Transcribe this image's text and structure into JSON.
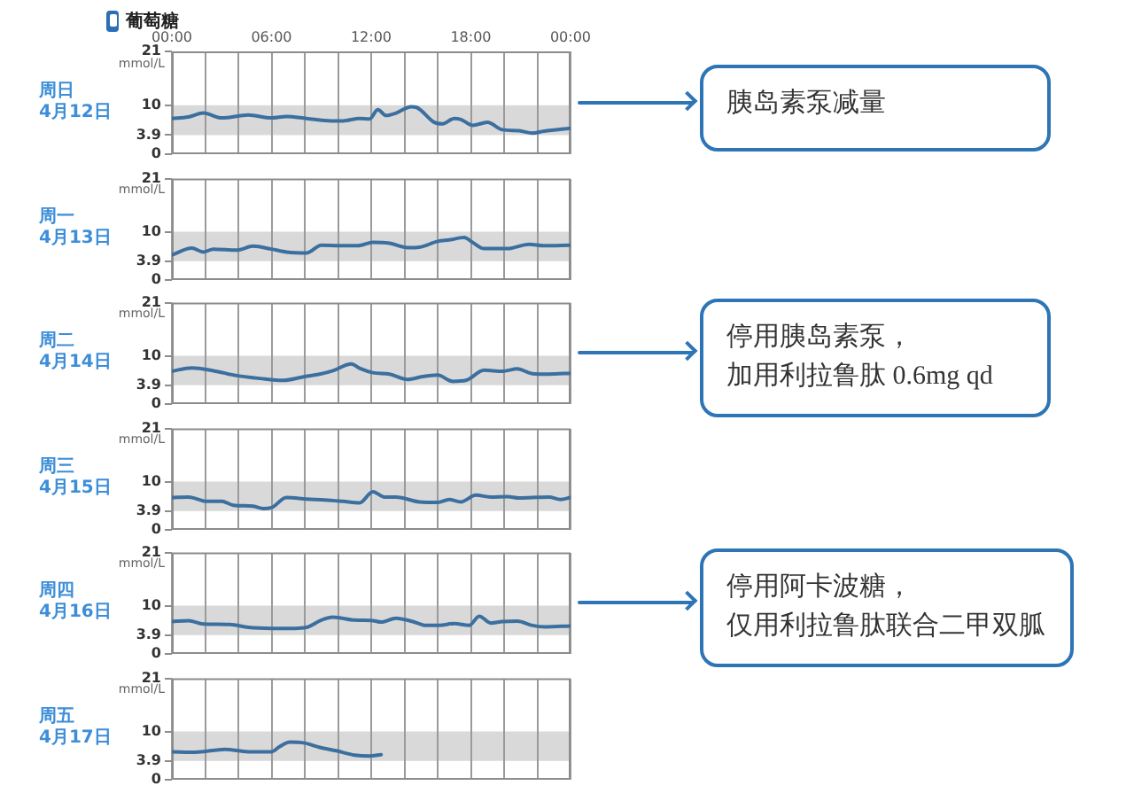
{
  "chart_data": [
    {
      "type": "other",
      "title": "葡萄糖"
    },
    {
      "type": "line",
      "title": "周日",
      "subtitle": "4月12日",
      "ylabel": "mmol/L",
      "color": "#3b6f9f",
      "x": [
        0,
        1,
        1.9,
        3,
        4.6,
        6,
        6.9,
        8.1,
        9.6,
        10.3,
        11.3,
        11.9,
        12.4,
        12.9,
        13.5,
        14.4,
        14.7,
        15.8,
        16.3,
        17,
        17.4,
        18.1,
        19,
        19.9,
        20.9,
        21.7,
        22.4,
        24
      ],
      "values": [
        7.3,
        7.6,
        8.4,
        7.4,
        8.0,
        7.4,
        7.7,
        7.3,
        6.8,
        6.8,
        7.3,
        7.2,
        9.1,
        7.9,
        8.4,
        9.7,
        9.6,
        6.5,
        6.2,
        7.3,
        7.1,
        5.9,
        6.5,
        5.0,
        4.8,
        4.3,
        4.7,
        5.3
      ],
      "xlim": [
        0,
        24
      ],
      "xticks": [
        {
          "value": 0,
          "label": "00:00"
        },
        {
          "value": 2,
          "label": null
        },
        {
          "value": 4,
          "label": null
        },
        {
          "value": 6,
          "label": "06:00"
        },
        {
          "value": 8,
          "label": null
        },
        {
          "value": 10,
          "label": null
        },
        {
          "value": 12,
          "label": "12:00"
        },
        {
          "value": 14,
          "label": null
        },
        {
          "value": 16,
          "label": null
        },
        {
          "value": 18,
          "label": "18:00"
        },
        {
          "value": 20,
          "label": null
        },
        {
          "value": 22,
          "label": null
        },
        {
          "value": 24,
          "label": "00:00"
        }
      ],
      "ylim": [
        0,
        21
      ],
      "yticks": [
        0,
        3.9,
        10,
        21
      ],
      "grid": "x",
      "bands": [
        {
          "axis": "y",
          "from": 3.9,
          "to": 10,
          "color": "#d9d9d9"
        }
      ],
      "annotations": [
        "胰岛素泵减量"
      ]
    },
    {
      "type": "line",
      "title": "周一",
      "subtitle": "4月13日",
      "ylabel": "mmol/L",
      "color": "#3b6f9f",
      "x": [
        0,
        1.2,
        1.9,
        2.5,
        3.9,
        4.9,
        6,
        6.9,
        8.1,
        9,
        10.1,
        11.2,
        12.1,
        13.1,
        14.2,
        14.9,
        16,
        16.7,
        17.6,
        18.1,
        18.8,
        20.2,
        21.5,
        22.4,
        24
      ],
      "values": [
        5.2,
        6.6,
        5.8,
        6.4,
        6.2,
        7.0,
        6.4,
        5.8,
        5.6,
        7.2,
        7.1,
        7.1,
        7.8,
        7.6,
        6.7,
        6.8,
        8.0,
        8.3,
        8.8,
        7.8,
        6.5,
        6.5,
        7.4,
        7.1,
        7.2
      ],
      "xlim": [
        0,
        24
      ],
      "xticks": [
        {
          "value": 0,
          "label": null
        },
        {
          "value": 2,
          "label": null
        },
        {
          "value": 4,
          "label": null
        },
        {
          "value": 6,
          "label": null
        },
        {
          "value": 8,
          "label": null
        },
        {
          "value": 10,
          "label": null
        },
        {
          "value": 12,
          "label": null
        },
        {
          "value": 14,
          "label": null
        },
        {
          "value": 16,
          "label": null
        },
        {
          "value": 18,
          "label": null
        },
        {
          "value": 20,
          "label": null
        },
        {
          "value": 22,
          "label": null
        },
        {
          "value": 24,
          "label": null
        }
      ],
      "ylim": [
        0,
        21
      ],
      "yticks": [
        0,
        3.9,
        10,
        21
      ],
      "grid": "x",
      "tick_labels": "y",
      "bands": [
        {
          "axis": "y",
          "from": 3.9,
          "to": 10,
          "color": "#d9d9d9"
        }
      ]
    },
    {
      "type": "line",
      "title": "周二",
      "subtitle": "4月14日",
      "ylabel": "mmol/L",
      "color": "#3b6f9f",
      "x": [
        0,
        1.2,
        2.5,
        3.9,
        5.3,
        6.7,
        8,
        8.9,
        9.7,
        10.8,
        11.3,
        12.1,
        13.1,
        14.2,
        15.1,
        16,
        16.9,
        17.7,
        18.8,
        19.9,
        20.8,
        21.7,
        22.7,
        24
      ],
      "values": [
        6.8,
        7.5,
        6.9,
        5.9,
        5.3,
        4.9,
        5.7,
        6.2,
        6.9,
        8.3,
        7.4,
        6.5,
        6.2,
        5.1,
        5.7,
        6.0,
        4.7,
        4.9,
        7.0,
        6.8,
        7.3,
        6.3,
        6.2,
        6.4
      ],
      "xlim": [
        0,
        24
      ],
      "xticks": [
        {
          "value": 0,
          "label": null
        },
        {
          "value": 2,
          "label": null
        },
        {
          "value": 4,
          "label": null
        },
        {
          "value": 6,
          "label": null
        },
        {
          "value": 8,
          "label": null
        },
        {
          "value": 10,
          "label": null
        },
        {
          "value": 12,
          "label": null
        },
        {
          "value": 14,
          "label": null
        },
        {
          "value": 16,
          "label": null
        },
        {
          "value": 18,
          "label": null
        },
        {
          "value": 20,
          "label": null
        },
        {
          "value": 22,
          "label": null
        },
        {
          "value": 24,
          "label": null
        }
      ],
      "ylim": [
        0,
        21
      ],
      "yticks": [
        0,
        3.9,
        10,
        21
      ],
      "grid": "x",
      "tick_labels": "y",
      "bands": [
        {
          "axis": "y",
          "from": 3.9,
          "to": 10,
          "color": "#d9d9d9"
        }
      ],
      "annotations": [
        "停用胰岛素泵，",
        "加用利拉鲁肽 0.6mg qd"
      ]
    },
    {
      "type": "line",
      "title": "周三",
      "subtitle": "4月15日",
      "ylabel": "mmol/L",
      "color": "#3b6f9f",
      "x": [
        0,
        1,
        2.1,
        3,
        3.7,
        4.9,
        5.5,
        6,
        6.9,
        8.1,
        9.2,
        10.3,
        11.3,
        12.1,
        12.8,
        13.5,
        14.9,
        16,
        16.7,
        17.4,
        18.3,
        19.2,
        20.2,
        20.9,
        21.7,
        22.7,
        23.4,
        24
      ],
      "values": [
        6.7,
        6.8,
        5.9,
        5.9,
        5.1,
        4.9,
        4.4,
        4.6,
        6.7,
        6.4,
        6.2,
        5.9,
        5.6,
        7.9,
        6.8,
        6.8,
        5.8,
        5.7,
        6.3,
        5.8,
        7.2,
        6.8,
        6.9,
        6.6,
        6.7,
        6.8,
        6.3,
        6.7
      ],
      "xlim": [
        0,
        24
      ],
      "xticks": [
        {
          "value": 0,
          "label": null
        },
        {
          "value": 2,
          "label": null
        },
        {
          "value": 4,
          "label": null
        },
        {
          "value": 6,
          "label": null
        },
        {
          "value": 8,
          "label": null
        },
        {
          "value": 10,
          "label": null
        },
        {
          "value": 12,
          "label": null
        },
        {
          "value": 14,
          "label": null
        },
        {
          "value": 16,
          "label": null
        },
        {
          "value": 18,
          "label": null
        },
        {
          "value": 20,
          "label": null
        },
        {
          "value": 22,
          "label": null
        },
        {
          "value": 24,
          "label": null
        }
      ],
      "ylim": [
        0,
        21
      ],
      "yticks": [
        0,
        3.9,
        10,
        21
      ],
      "grid": "x",
      "tick_labels": "y",
      "bands": [
        {
          "axis": "y",
          "from": 3.9,
          "to": 10,
          "color": "#d9d9d9"
        }
      ]
    },
    {
      "type": "line",
      "title": "周四",
      "subtitle": "4月16日",
      "ylabel": "mmol/L",
      "color": "#3b6f9f",
      "x": [
        0,
        1,
        1.9,
        3.5,
        4.6,
        6,
        7.4,
        8.1,
        9,
        9.7,
        11,
        12.1,
        12.6,
        13.5,
        14.5,
        15.3,
        16.1,
        17,
        17.9,
        18.5,
        19.2,
        19.9,
        20.8,
        21.7,
        22.5,
        24
      ],
      "values": [
        6.7,
        6.9,
        6.2,
        6.1,
        5.5,
        5.3,
        5.3,
        5.5,
        7.0,
        7.6,
        7.0,
        6.9,
        6.6,
        7.4,
        6.7,
        5.9,
        5.9,
        6.3,
        5.9,
        7.8,
        6.4,
        6.7,
        6.8,
        5.9,
        5.6,
        5.8
      ],
      "xlim": [
        0,
        24
      ],
      "xticks": [
        {
          "value": 0,
          "label": null
        },
        {
          "value": 2,
          "label": null
        },
        {
          "value": 4,
          "label": null
        },
        {
          "value": 6,
          "label": null
        },
        {
          "value": 8,
          "label": null
        },
        {
          "value": 10,
          "label": null
        },
        {
          "value": 12,
          "label": null
        },
        {
          "value": 14,
          "label": null
        },
        {
          "value": 16,
          "label": null
        },
        {
          "value": 18,
          "label": null
        },
        {
          "value": 20,
          "label": null
        },
        {
          "value": 22,
          "label": null
        },
        {
          "value": 24,
          "label": null
        }
      ],
      "ylim": [
        0,
        21
      ],
      "yticks": [
        0,
        3.9,
        10,
        21
      ],
      "grid": "x",
      "tick_labels": "y",
      "bands": [
        {
          "axis": "y",
          "from": 3.9,
          "to": 10,
          "color": "#d9d9d9"
        }
      ],
      "annotations": [
        "停用阿卡波糖，",
        "仅用利拉鲁肽联合二甲双胍"
      ]
    },
    {
      "type": "line",
      "title": "周五",
      "subtitle": "4月17日",
      "ylabel": "mmol/L",
      "color": "#3b6f9f",
      "x": [
        0,
        1.4,
        3.2,
        4.6,
        6,
        6.5,
        7.1,
        8,
        8.9,
        9.9,
        11,
        11.9,
        12.6
      ],
      "values": [
        5.8,
        5.7,
        6.3,
        5.8,
        5.8,
        6.9,
        7.8,
        7.6,
        6.7,
        6.0,
        5.1,
        4.9,
        5.2
      ],
      "xlim": [
        0,
        24
      ],
      "xticks": [
        {
          "value": 0,
          "label": null
        },
        {
          "value": 2,
          "label": null
        },
        {
          "value": 4,
          "label": null
        },
        {
          "value": 6,
          "label": null
        },
        {
          "value": 8,
          "label": null
        },
        {
          "value": 10,
          "label": null
        },
        {
          "value": 12,
          "label": null
        },
        {
          "value": 14,
          "label": null
        },
        {
          "value": 16,
          "label": null
        },
        {
          "value": 18,
          "label": null
        },
        {
          "value": 20,
          "label": null
        },
        {
          "value": 22,
          "label": null
        },
        {
          "value": 24,
          "label": null
        }
      ],
      "ylim": [
        0,
        21
      ],
      "yticks": [
        0,
        3.9,
        10,
        21
      ],
      "grid": "x",
      "tick_labels": "y",
      "bands": [
        {
          "axis": "y",
          "from": 3.9,
          "to": 10,
          "color": "#d9d9d9"
        }
      ]
    }
  ]
}
